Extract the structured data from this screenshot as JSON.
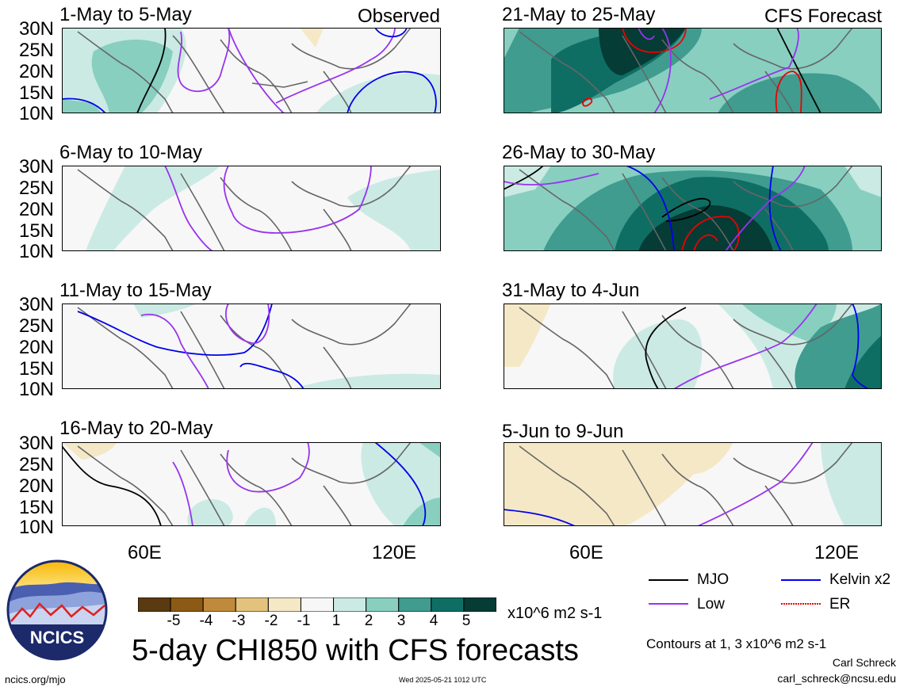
{
  "title": "5-day CHI850 with CFS forecasts",
  "observed_label": "Observed",
  "forecast_label": "CFS Forecast",
  "lat_labels": [
    "30N",
    "25N",
    "20N",
    "15N",
    "10N"
  ],
  "lon_labels": [
    "60E",
    "120E"
  ],
  "panels_left": [
    {
      "title": "1-May to 5-May"
    },
    {
      "title": "6-May to 10-May"
    },
    {
      "title": "11-May to 15-May"
    },
    {
      "title": "16-May to 20-May"
    }
  ],
  "panels_right": [
    {
      "title": "21-May to 25-May"
    },
    {
      "title": "26-May to 30-May"
    },
    {
      "title": "31-May to 4-Jun"
    },
    {
      "title": "5-Jun to 9-Jun"
    }
  ],
  "colorbar": {
    "ticks": [
      "-5",
      "-4",
      "-3",
      "-2",
      "-1",
      "1",
      "2",
      "3",
      "4",
      "5"
    ],
    "unit": "x10^6 m2 s-1",
    "colors": [
      "#5a3a10",
      "#8c5a15",
      "#bf8a3b",
      "#e3c27d",
      "#f5e8c6",
      "#f7f7f7",
      "#cbeae3",
      "#88cfc0",
      "#3f9c8f",
      "#0f6e64",
      "#053c35"
    ]
  },
  "legend": {
    "items": [
      {
        "label": "MJO",
        "color": "#000000"
      },
      {
        "label": "Kelvin x2",
        "color": "#0000ee"
      },
      {
        "label": "Low",
        "color": "#9933ee"
      },
      {
        "label": "ER",
        "color": "#ee0000"
      }
    ],
    "note": "Contours at 1, 3 x10^6 m2 s-1"
  },
  "credits": {
    "author": "Carl Schreck",
    "email": "carl_schreck@ncsu.edu",
    "url": "ncics.org/mjo",
    "timestamp": "Wed 2025-05-21 1012 UTC",
    "logo_text": "NCICS"
  }
}
